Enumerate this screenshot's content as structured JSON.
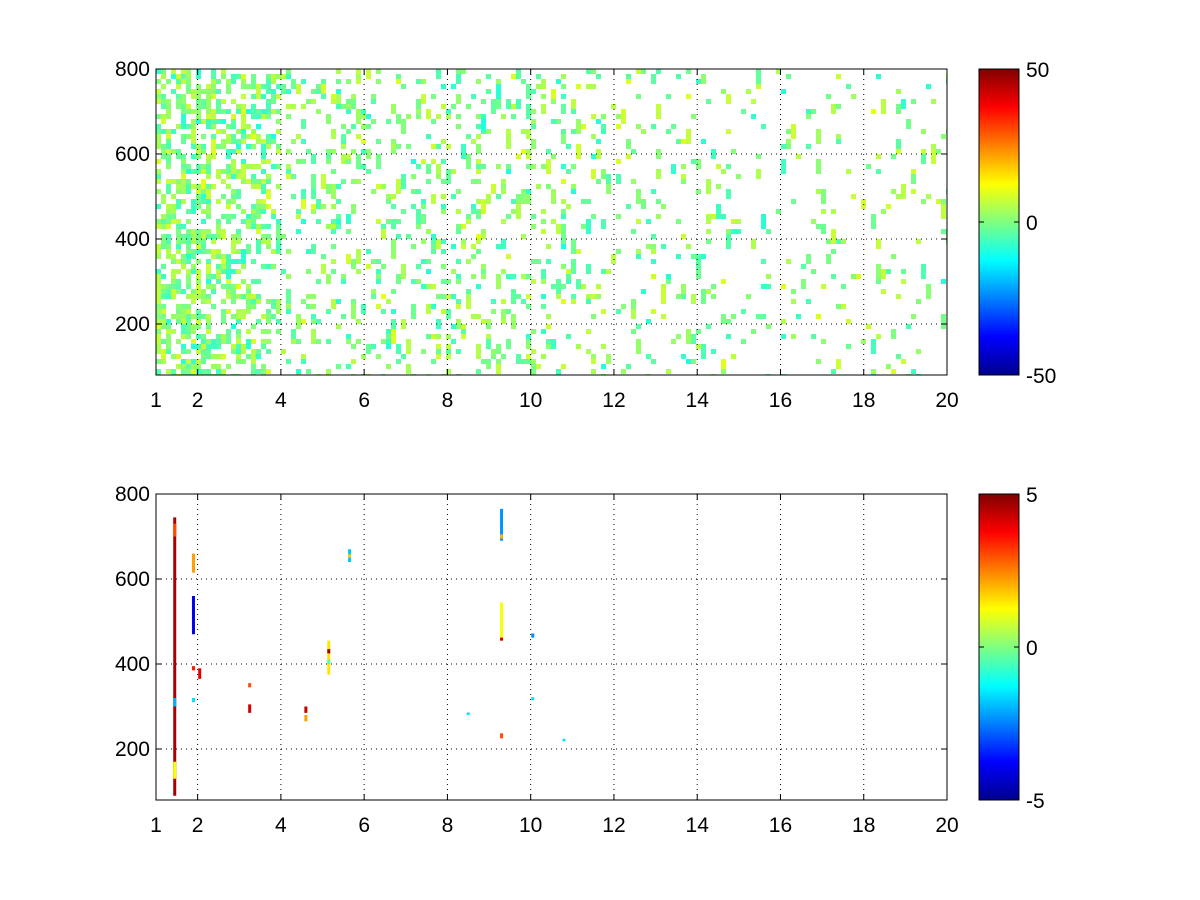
{
  "chart_data": [
    {
      "type": "heatmap",
      "title": "",
      "xlabel": "",
      "ylabel": "",
      "xlim": [
        1,
        20
      ],
      "ylim": [
        80,
        800
      ],
      "x_ticks": [
        1,
        2,
        4,
        6,
        8,
        10,
        12,
        14,
        16,
        18,
        20
      ],
      "y_ticks": [
        200,
        400,
        600,
        800
      ],
      "grid": true,
      "colormap": "jet",
      "colorbar": {
        "clim": [
          -50,
          50
        ],
        "ticks": [
          50,
          0,
          -50
        ]
      },
      "density_profile": [
        [
          1.0,
          0.95
        ],
        [
          1.8,
          0.85
        ],
        [
          3.6,
          0.6
        ],
        [
          4.0,
          0.3
        ],
        [
          5.7,
          0.4
        ],
        [
          6.0,
          0.2
        ],
        [
          8.0,
          0.32
        ],
        [
          10.0,
          0.3
        ],
        [
          12.0,
          0.2
        ],
        [
          14.0,
          0.16
        ],
        [
          16.0,
          0.1
        ],
        [
          18.0,
          0.12
        ],
        [
          20.0,
          0.14
        ]
      ],
      "value_spread": 8,
      "notes": "sparse field of values mostly near 0 (cyan/green/yellow); denser at low x"
    },
    {
      "type": "heatmap",
      "title": "",
      "xlabel": "",
      "ylabel": "",
      "xlim": [
        1,
        20
      ],
      "ylim": [
        80,
        800
      ],
      "x_ticks": [
        1,
        2,
        4,
        6,
        8,
        10,
        12,
        14,
        16,
        18,
        20
      ],
      "y_ticks": [
        200,
        400,
        600,
        800
      ],
      "grid": true,
      "colormap": "jet",
      "colorbar": {
        "clim": [
          -5,
          5
        ],
        "ticks": [
          5,
          0,
          -5
        ]
      },
      "points": [
        {
          "x": 1.45,
          "y0": 90,
          "y1": 745,
          "v": 4.6
        },
        {
          "x": 1.45,
          "y0": 700,
          "y1": 730,
          "v": 3.0
        },
        {
          "x": 1.45,
          "y0": 130,
          "y1": 170,
          "v": 1.2
        },
        {
          "x": 1.45,
          "y0": 300,
          "y1": 320,
          "v": -2.0
        },
        {
          "x": 1.9,
          "y0": 615,
          "y1": 660,
          "v": 2.2
        },
        {
          "x": 1.9,
          "y0": 470,
          "y1": 560,
          "v": -4.0
        },
        {
          "x": 1.9,
          "y0": 385,
          "y1": 395,
          "v": 3.5
        },
        {
          "x": 1.9,
          "y0": 310,
          "y1": 320,
          "v": -1.5
        },
        {
          "x": 2.05,
          "y0": 365,
          "y1": 390,
          "v": 4.0
        },
        {
          "x": 3.25,
          "y0": 285,
          "y1": 305,
          "v": 4.2
        },
        {
          "x": 3.25,
          "y0": 345,
          "y1": 355,
          "v": 3.0
        },
        {
          "x": 4.6,
          "y0": 285,
          "y1": 300,
          "v": 4.3
        },
        {
          "x": 4.6,
          "y0": 265,
          "y1": 280,
          "v": 2.2
        },
        {
          "x": 5.15,
          "y0": 375,
          "y1": 455,
          "v": 1.5
        },
        {
          "x": 5.15,
          "y0": 425,
          "y1": 435,
          "v": 4.6
        },
        {
          "x": 5.15,
          "y0": 400,
          "y1": 410,
          "v": -0.5
        },
        {
          "x": 5.65,
          "y0": 640,
          "y1": 670,
          "v": -1.8
        },
        {
          "x": 5.65,
          "y0": 650,
          "y1": 658,
          "v": 1.8
        },
        {
          "x": 8.5,
          "y0": 280,
          "y1": 286,
          "v": -1.5
        },
        {
          "x": 9.3,
          "y0": 690,
          "y1": 765,
          "v": -2.3
        },
        {
          "x": 9.3,
          "y0": 695,
          "y1": 705,
          "v": 2.0
        },
        {
          "x": 9.3,
          "y0": 455,
          "y1": 545,
          "v": 1.2
        },
        {
          "x": 9.3,
          "y0": 455,
          "y1": 462,
          "v": 4.2
        },
        {
          "x": 9.3,
          "y0": 225,
          "y1": 237,
          "v": 3.0
        },
        {
          "x": 10.05,
          "y0": 462,
          "y1": 472,
          "v": -2.3
        },
        {
          "x": 10.05,
          "y0": 315,
          "y1": 322,
          "v": -1.5
        },
        {
          "x": 10.8,
          "y0": 218,
          "y1": 224,
          "v": -1.5
        }
      ]
    }
  ]
}
